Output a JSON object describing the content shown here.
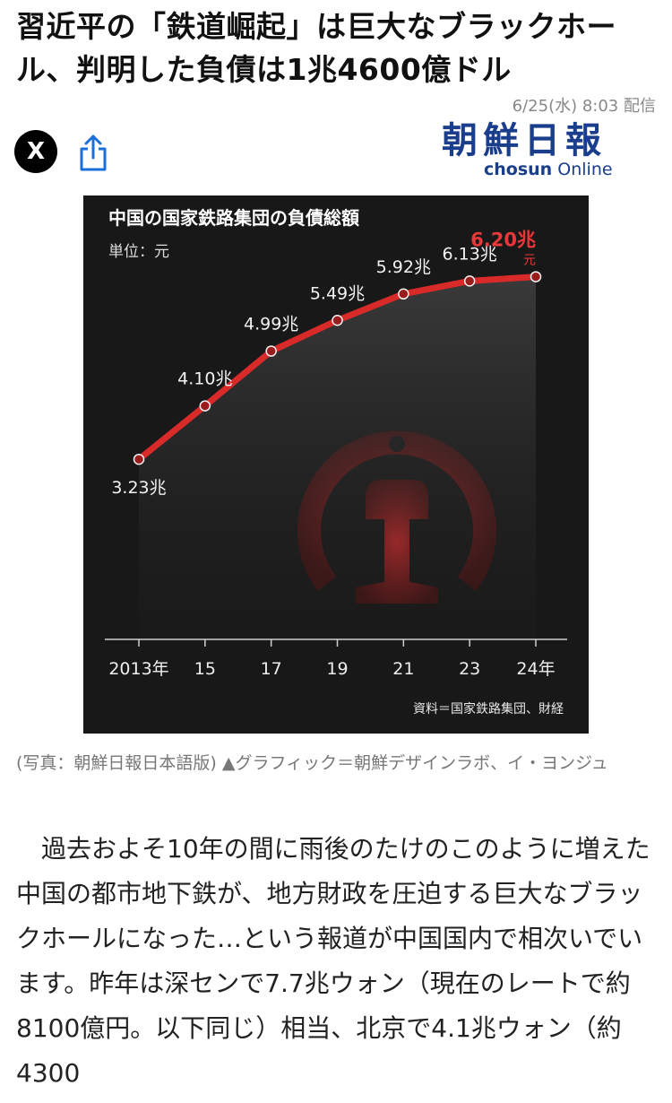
{
  "article": {
    "headline": "習近平の「鉄道崛起」は巨大なブラックホール、判明した負債は1兆4600億ドル",
    "date": "6/25(水) 8:03 配信",
    "source_logo_kanji": "朝鮮日報",
    "source_logo_latin_bold": "chosun",
    "source_logo_latin_light": "Online",
    "caption": "(写真：朝鮮日報日本語版) ▲グラフィック＝朝鮮デザインラボ、イ・ヨンジュ",
    "body": "　過去およそ10年の間に雨後のたけのこのように増えた中国の都市地下鉄が、地方財政を圧迫する巨大なブラックホールになった…という報道が中国国内で相次いでいます。昨年は深センで7.7兆ウォン（現在のレートで約8100億円。以下同じ）相当、北京で4.1兆ウォン（約4300"
  },
  "share": {
    "x_icon": "x-logo-icon",
    "x_glyph": "X",
    "share_icon": "share-icon"
  },
  "colors": {
    "brand_blue": "#1a3e8c",
    "chart_bg": "#181818",
    "line_red": "#d92a2a",
    "highlight_red": "#e8383a"
  },
  "chart_data": {
    "type": "line",
    "title": "中国の国家鉄路集団の負債総額",
    "unit_label": "単位：元",
    "source": "資料＝国家鉄路集団、財経",
    "x": [
      "2013年",
      "15",
      "17",
      "19",
      "21",
      "23",
      "24年"
    ],
    "values": [
      3.23,
      4.1,
      4.99,
      5.49,
      5.92,
      6.13,
      6.2
    ],
    "labels": [
      "3.23兆",
      "4.10兆",
      "4.99兆",
      "5.49兆",
      "5.92兆",
      "6.13兆",
      "6.20兆"
    ],
    "last_unit": "元",
    "ylim": [
      3.0,
      6.5
    ],
    "grid": false,
    "background_emblem": "china-railway-logo"
  }
}
